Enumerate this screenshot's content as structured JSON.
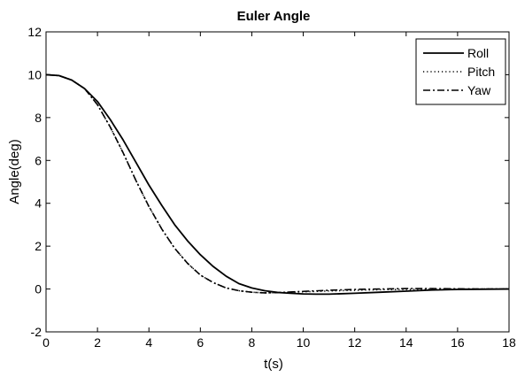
{
  "chart_data": {
    "type": "line",
    "title": "Euler Angle",
    "xlabel": "t(s)",
    "ylabel": "Angle(deg)",
    "xlim": [
      0,
      18
    ],
    "ylim": [
      -2,
      12
    ],
    "xticks": [
      0,
      2,
      4,
      6,
      8,
      10,
      12,
      14,
      16,
      18
    ],
    "yticks": [
      -2,
      0,
      2,
      4,
      6,
      8,
      10,
      12
    ],
    "grid": false,
    "legend_position": "top-right",
    "series": [
      {
        "name": "Roll",
        "line_style": "solid",
        "color": "#000000",
        "points": [
          [
            0,
            10
          ],
          [
            0.5,
            9.96
          ],
          [
            1,
            9.75
          ],
          [
            1.5,
            9.35
          ],
          [
            2,
            8.75
          ],
          [
            2.5,
            7.9
          ],
          [
            3,
            6.95
          ],
          [
            3.5,
            5.9
          ],
          [
            4,
            4.85
          ],
          [
            4.5,
            3.9
          ],
          [
            5,
            3.0
          ],
          [
            5.5,
            2.25
          ],
          [
            6,
            1.6
          ],
          [
            6.5,
            1.05
          ],
          [
            7,
            0.6
          ],
          [
            7.5,
            0.25
          ],
          [
            8,
            0.05
          ],
          [
            8.5,
            -0.08
          ],
          [
            9,
            -0.16
          ],
          [
            9.5,
            -0.2
          ],
          [
            10,
            -0.23
          ],
          [
            10.5,
            -0.24
          ],
          [
            11,
            -0.24
          ],
          [
            12,
            -0.2
          ],
          [
            13,
            -0.15
          ],
          [
            14,
            -0.1
          ],
          [
            15,
            -0.05
          ],
          [
            16,
            -0.02
          ],
          [
            17,
            -0.01
          ],
          [
            18,
            0
          ]
        ]
      },
      {
        "name": "Pitch",
        "line_style": "dotted",
        "color": "#000000",
        "points": [
          [
            0,
            10
          ],
          [
            0.5,
            9.96
          ],
          [
            1,
            9.75
          ],
          [
            1.5,
            9.35
          ],
          [
            2,
            8.6
          ],
          [
            2.5,
            7.55
          ],
          [
            3,
            6.35
          ],
          [
            3.5,
            5.05
          ],
          [
            4,
            3.85
          ],
          [
            4.5,
            2.8
          ],
          [
            5,
            1.9
          ],
          [
            5.5,
            1.2
          ],
          [
            6,
            0.65
          ],
          [
            6.5,
            0.3
          ],
          [
            7,
            0.05
          ],
          [
            7.5,
            -0.08
          ],
          [
            8,
            -0.15
          ],
          [
            8.5,
            -0.18
          ],
          [
            9,
            -0.17
          ],
          [
            9.5,
            -0.15
          ],
          [
            10,
            -0.13
          ],
          [
            11,
            -0.09
          ],
          [
            12,
            -0.06
          ],
          [
            13,
            -0.03
          ],
          [
            14,
            -0.02
          ],
          [
            15,
            -0.01
          ],
          [
            16,
            0
          ],
          [
            17,
            0
          ],
          [
            18,
            0
          ]
        ]
      },
      {
        "name": "Yaw",
        "line_style": "dashdot",
        "color": "#000000",
        "points": [
          [
            0,
            10
          ],
          [
            0.5,
            9.96
          ],
          [
            1,
            9.75
          ],
          [
            1.5,
            9.35
          ],
          [
            2,
            8.6
          ],
          [
            2.5,
            7.55
          ],
          [
            3,
            6.35
          ],
          [
            3.5,
            5.05
          ],
          [
            4,
            3.85
          ],
          [
            4.5,
            2.8
          ],
          [
            5,
            1.9
          ],
          [
            5.5,
            1.2
          ],
          [
            6,
            0.65
          ],
          [
            6.5,
            0.3
          ],
          [
            7,
            0.05
          ],
          [
            7.5,
            -0.08
          ],
          [
            8,
            -0.15
          ],
          [
            8.5,
            -0.18
          ],
          [
            9,
            -0.17
          ],
          [
            9.5,
            -0.14
          ],
          [
            10,
            -0.11
          ],
          [
            11,
            -0.06
          ],
          [
            12,
            -0.02
          ],
          [
            13,
            0
          ],
          [
            14,
            0.02
          ],
          [
            15,
            0.02
          ],
          [
            16,
            0.01
          ],
          [
            17,
            0
          ],
          [
            18,
            0
          ]
        ]
      }
    ]
  }
}
